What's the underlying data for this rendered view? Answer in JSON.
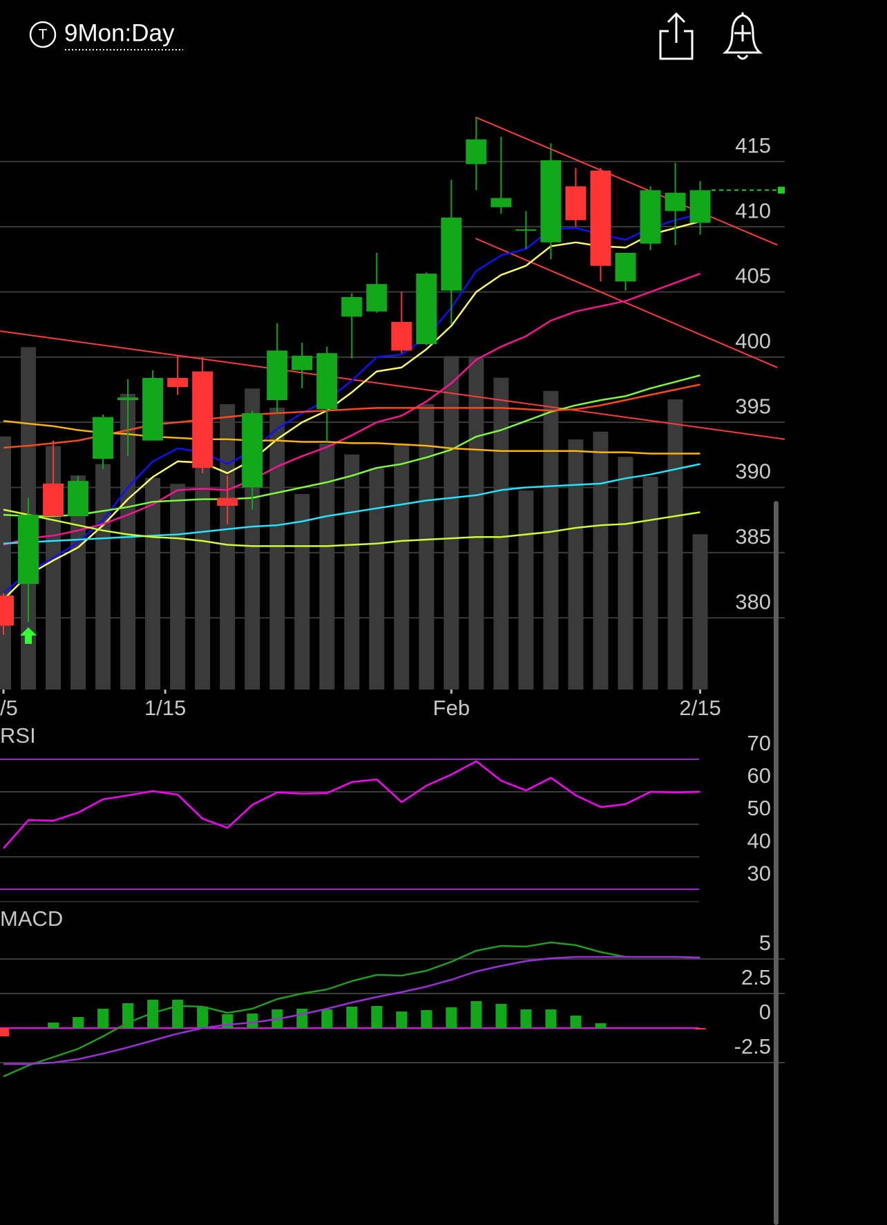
{
  "header": {
    "title": "9Mon:Day",
    "icon_label": "T"
  },
  "chart_data": [
    {
      "type": "candlestick",
      "x": [
        0,
        1,
        2,
        3,
        4,
        5,
        6,
        7,
        8,
        9,
        10,
        11,
        12,
        13,
        14,
        15,
        16,
        17,
        18,
        19,
        20,
        21,
        22,
        23,
        24,
        25,
        26,
        27,
        28
      ],
      "open": [
        381.7,
        382.6,
        390.3,
        387.8,
        392.2,
        396.7,
        393.6,
        398.4,
        398.9,
        389.2,
        390.0,
        396.7,
        399.0,
        396.0,
        403.1,
        403.5,
        402.7,
        401.0,
        405.1,
        414.8,
        411.5,
        409.7,
        408.8,
        413.1,
        414.3,
        405.8,
        408.7,
        411.2,
        410.3
      ],
      "high": [
        381.9,
        389.2,
        393.6,
        390.9,
        395.6,
        398.3,
        399.0,
        400.1,
        400.0,
        390.9,
        395.9,
        402.6,
        401.1,
        400.8,
        404.9,
        408.0,
        405.0,
        406.5,
        413.6,
        418.4,
        416.9,
        411.2,
        416.4,
        414.5,
        414.5,
        408.0,
        413.1,
        414.9,
        413.5
      ],
      "low": [
        378.7,
        379.7,
        387.8,
        387.8,
        391.4,
        392.4,
        393.6,
        397.1,
        391.1,
        387.2,
        388.3,
        395.7,
        397.6,
        393.5,
        399.9,
        403.4,
        400.3,
        400.9,
        402.5,
        412.8,
        411.0,
        408.3,
        407.5,
        410.0,
        405.8,
        405.1,
        408.2,
        408.6,
        409.4
      ],
      "close": [
        379.4,
        387.9,
        387.8,
        390.5,
        395.4,
        396.9,
        398.4,
        397.7,
        391.5,
        388.6,
        395.7,
        400.5,
        400.1,
        400.3,
        404.6,
        405.6,
        400.5,
        406.4,
        410.7,
        416.7,
        412.2,
        409.8,
        415.1,
        410.5,
        407.0,
        408.0,
        412.8,
        412.6,
        412.8
      ],
      "up_color": "#13a81c",
      "down_color": "#ff3535",
      "volume": {
        "color": "#3a3a3a",
        "ylim": [
          0,
          100
        ],
        "values": [
          42.2,
          57.1,
          40.6,
          35.7,
          37.6,
          49.3,
          35.3,
          34.3,
          50.5,
          47.6,
          50.2,
          47.0,
          32.6,
          41.0,
          39.2,
          36.9,
          41.0,
          47.6,
          55.6,
          55.6,
          52.0,
          33.2,
          49.8,
          41.7,
          43.0,
          38.8,
          35.5,
          48.4,
          25.9
        ]
      },
      "overlays": [
        {
          "color": "#1010ff",
          "values": [
            381.9,
            383.5,
            384.6,
            385.8,
            387.5,
            390.0,
            392.0,
            393.0,
            392.7,
            391.8,
            392.8,
            394.5,
            395.7,
            396.7,
            398.2,
            400.0,
            400.2,
            401.5,
            403.8,
            406.6,
            407.8,
            408.3,
            409.8,
            409.9,
            409.4,
            409.0,
            409.9,
            410.5,
            411.0
          ]
        },
        {
          "color": "#ffff66",
          "values": [
            381.4,
            383.3,
            384.4,
            385.4,
            387.1,
            389.1,
            390.8,
            392.0,
            391.9,
            391.1,
            392.1,
            393.7,
            395.0,
            395.9,
            397.3,
            398.9,
            399.2,
            400.6,
            402.4,
            405.0,
            406.3,
            407.0,
            408.5,
            408.8,
            408.5,
            408.4,
            409.4,
            409.9,
            410.4
          ]
        },
        {
          "color": "#ff1493",
          "values": [
            385.6,
            386.1,
            386.3,
            386.7,
            387.2,
            387.9,
            388.7,
            389.8,
            389.9,
            389.8,
            390.6,
            391.6,
            392.4,
            393.1,
            394.0,
            395.0,
            395.5,
            396.6,
            398.0,
            399.8,
            400.8,
            401.6,
            402.8,
            403.5,
            403.9,
            404.3,
            405.0,
            405.7,
            406.4
          ]
        },
        {
          "color": "#7cfc3c",
          "values": [
            387.9,
            387.8,
            387.8,
            387.9,
            388.2,
            388.5,
            388.9,
            389.0,
            389.1,
            389.1,
            389.2,
            389.6,
            390.0,
            390.4,
            390.9,
            391.5,
            391.8,
            392.3,
            392.9,
            393.9,
            394.4,
            395.1,
            395.8,
            396.3,
            396.7,
            397.0,
            397.6,
            398.1,
            398.6
          ]
        },
        {
          "color": "#ff4a1c",
          "values": [
            393.05,
            393.2,
            393.4,
            393.6,
            394.0,
            394.4,
            394.8,
            395.0,
            395.2,
            395.4,
            395.6,
            395.7,
            395.8,
            395.9,
            396.0,
            396.1,
            396.1,
            396.1,
            396.1,
            396.1,
            396.1,
            396.0,
            395.9,
            396.0,
            396.3,
            396.7,
            397.1,
            397.5,
            397.9
          ]
        },
        {
          "color": "#ffb400",
          "values": [
            395.1,
            394.9,
            394.7,
            394.4,
            394.2,
            394.1,
            393.9,
            393.8,
            393.7,
            393.7,
            393.6,
            393.6,
            393.5,
            393.5,
            393.4,
            393.4,
            393.3,
            393.2,
            393.0,
            392.9,
            392.8,
            392.8,
            392.8,
            392.8,
            392.7,
            392.7,
            392.6,
            392.6,
            392.6
          ]
        },
        {
          "color": "#22e5ff",
          "values": [
            385.7,
            385.8,
            385.9,
            386.0,
            386.1,
            386.2,
            386.3,
            386.4,
            386.6,
            386.8,
            387.0,
            387.1,
            387.4,
            387.8,
            388.1,
            388.4,
            388.7,
            389.0,
            389.2,
            389.4,
            389.8,
            390.0,
            390.1,
            390.2,
            390.3,
            390.7,
            391.0,
            391.4,
            391.8
          ]
        },
        {
          "color": "#ccff33",
          "values": [
            388.3,
            387.9,
            387.5,
            387.1,
            386.7,
            386.4,
            386.2,
            386.1,
            385.9,
            385.6,
            385.5,
            385.5,
            385.5,
            385.5,
            385.6,
            385.7,
            385.9,
            386.0,
            386.1,
            386.2,
            386.2,
            386.4,
            386.6,
            386.9,
            387.1,
            387.2,
            387.5,
            387.8,
            388.1
          ]
        }
      ],
      "trendlines": {
        "color": "#ff3b3b",
        "lines": [
          [
            [
              -0.14,
              402.0
            ],
            [
              31.4,
              393.7
            ]
          ],
          [
            [
              18.97,
              418.4
            ],
            [
              31.1,
              408.6
            ]
          ],
          [
            [
              18.97,
              409.1
            ],
            [
              31.1,
              399.2
            ]
          ]
        ]
      },
      "last_price": 412.8,
      "last_price_color": "#22cc22",
      "signals": [
        {
          "x": 1,
          "color": "#33ff33"
        }
      ],
      "xlim": [
        -0.14,
        31.4
      ],
      "xticks": [
        {
          "value": 0,
          "label": "/5"
        },
        {
          "value": 6.5,
          "label": "1/15"
        },
        {
          "value": 18,
          "label": "Feb"
        },
        {
          "value": 28,
          "label": "2/15"
        }
      ],
      "ylim": [
        374.5,
        420.5
      ],
      "yticks": [
        380,
        385,
        390,
        395,
        400,
        405,
        410,
        415
      ],
      "grid": true
    },
    {
      "type": "line",
      "title": "RSI",
      "x": [
        0,
        1,
        2,
        3,
        4,
        5,
        6,
        7,
        8,
        9,
        10,
        11,
        12,
        13,
        14,
        15,
        16,
        17,
        18,
        19,
        20,
        21,
        22,
        23,
        24,
        25,
        26,
        27,
        28
      ],
      "series": [
        {
          "color": "#ff00ff",
          "values": [
            42.6,
            51.3,
            51.1,
            53.6,
            57.7,
            58.9,
            60.2,
            59.1,
            51.7,
            48.9,
            56.0,
            59.8,
            59.4,
            59.6,
            63.0,
            63.8,
            56.8,
            61.9,
            65.3,
            69.4,
            63.4,
            60.4,
            64.3,
            58.9,
            55.3,
            56.2,
            60.0,
            59.8,
            60.0
          ]
        }
      ],
      "levels": [
        30,
        70
      ],
      "level_color": "#9b30d9",
      "xlim": [
        -0.14,
        31.4
      ],
      "ylim": [
        26.2,
        80.4
      ],
      "yticks": [
        30,
        40,
        50,
        60,
        70
      ],
      "grid": true
    },
    {
      "type": "macd",
      "title": "MACD",
      "x": [
        0,
        1,
        2,
        3,
        4,
        5,
        6,
        7,
        8,
        9,
        10,
        11,
        12,
        13,
        14,
        15,
        16,
        17,
        18,
        19,
        20,
        21,
        22,
        23,
        24,
        25,
        26,
        27,
        28
      ],
      "series": [
        {
          "color": "#1f9e1f",
          "values": [
            -3.5,
            -2.7,
            -2.1,
            -1.5,
            -0.6,
            0.4,
            1.1,
            1.6,
            1.55,
            1.1,
            1.4,
            2.1,
            2.5,
            2.8,
            3.4,
            3.85,
            3.8,
            4.15,
            4.8,
            5.6,
            5.95,
            5.9,
            6.2,
            6.0,
            5.5,
            5.15,
            5.15,
            5.15,
            5.1
          ]
        },
        {
          "color": "#9b30d9",
          "values": [
            -2.6,
            -2.6,
            -2.5,
            -2.25,
            -1.85,
            -1.4,
            -0.9,
            -0.4,
            0.0,
            0.25,
            0.4,
            0.65,
            1.0,
            1.4,
            1.85,
            2.25,
            2.6,
            3.0,
            3.5,
            4.1,
            4.5,
            4.85,
            5.05,
            5.15,
            5.15,
            5.15,
            5.15,
            5.15,
            5.1
          ]
        }
      ],
      "histogram": {
        "up_color": "#13a81c",
        "down_color": "#ff3535",
        "values": [
          -0.6,
          0,
          0.4,
          0.8,
          1.4,
          1.8,
          2.05,
          2.05,
          1.55,
          1.0,
          1.05,
          1.35,
          1.4,
          1.35,
          1.55,
          1.6,
          1.2,
          1.3,
          1.5,
          1.95,
          1.75,
          1.35,
          1.35,
          0.9,
          0.35,
          0,
          0,
          0,
          -0.1
        ]
      },
      "zero_line_color": "#ff00ff",
      "xlim": [
        -0.14,
        31.4
      ],
      "ylim": [
        -14.25,
        8.65
      ],
      "yticks": [
        -2.5,
        0,
        2.5,
        5
      ],
      "grid": true
    }
  ]
}
